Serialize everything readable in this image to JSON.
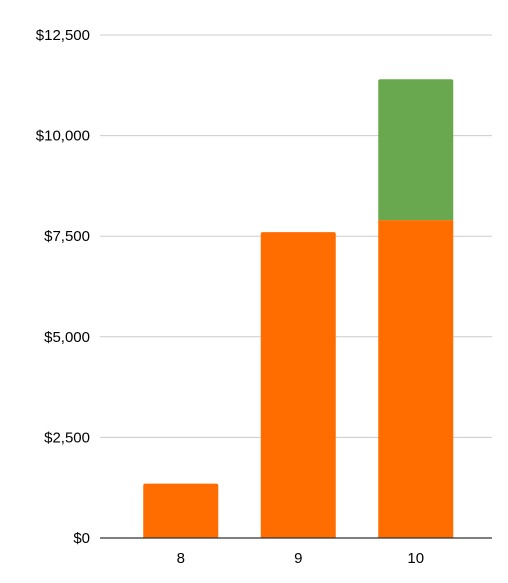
{
  "chart_data": {
    "type": "bar",
    "stacked": true,
    "title": "",
    "xlabel": "",
    "ylabel": "",
    "categories": [
      "8",
      "9",
      "10"
    ],
    "series": [
      {
        "values": [
          1350,
          7600,
          7900
        ],
        "color": "#ff6d01"
      },
      {
        "values": [
          0,
          0,
          3500
        ],
        "color": "#6aa84f"
      }
    ],
    "ylim": [
      0,
      12500
    ],
    "yticks": [
      0,
      2500,
      5000,
      7500,
      10000,
      12500
    ],
    "ytick_labels": [
      "$0",
      "$2,500",
      "$5,000",
      "$7,500",
      "$10,000",
      "$12,500"
    ],
    "grid": true,
    "legend": "none",
    "colors": {
      "grid": "#cccccc",
      "axis": "#333333"
    }
  }
}
